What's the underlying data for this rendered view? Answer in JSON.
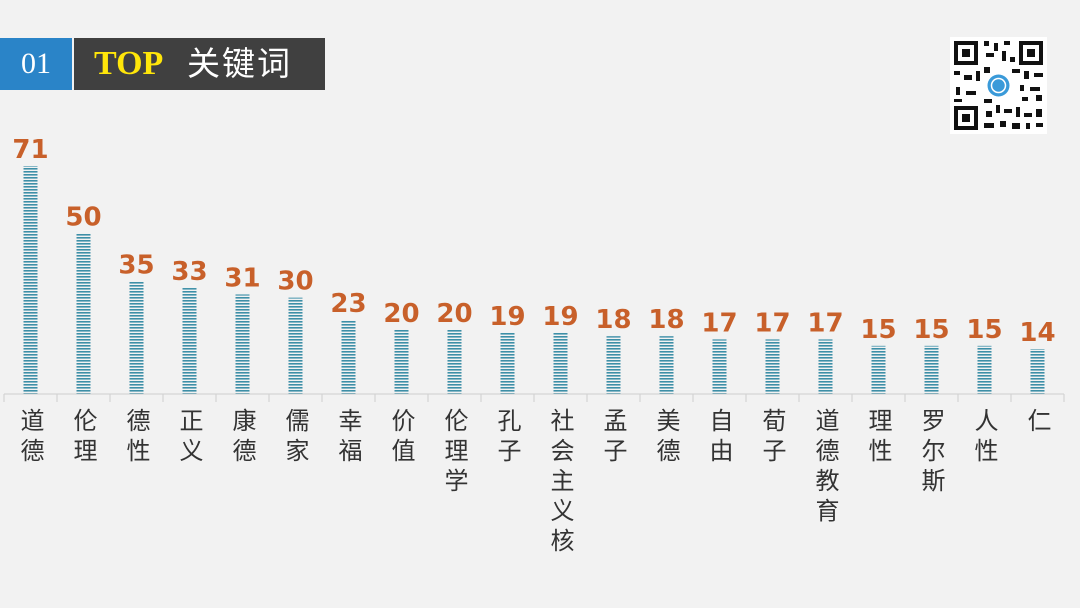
{
  "header": {
    "section_number": "01",
    "title_top": "TOP",
    "title_cn": "关键词"
  },
  "qr_code": {
    "icon": "qr-code-icon"
  },
  "colors": {
    "bar": "#3d8fa7",
    "value_label": "#c8602a",
    "section_bg": "#2a84c8",
    "title_bg": "#404040",
    "title_top": "#ffe60a"
  },
  "chart_data": {
    "type": "bar",
    "categories": [
      "道德",
      "伦理",
      "德性",
      "正义",
      "康德",
      "儒家",
      "幸福",
      "价值",
      "伦理学",
      "孔子",
      "社会主义核",
      "孟子",
      "美德",
      "自由",
      "荀子",
      "道德教育",
      "理性",
      "罗尔斯",
      "人性",
      "仁"
    ],
    "values": [
      71,
      50,
      35,
      33,
      31,
      30,
      23,
      20,
      20,
      19,
      19,
      18,
      18,
      17,
      17,
      17,
      15,
      15,
      15,
      14
    ],
    "title": "",
    "xlabel": "",
    "ylabel": "",
    "ylim": [
      0,
      71
    ],
    "grid": false,
    "legend": "none"
  }
}
